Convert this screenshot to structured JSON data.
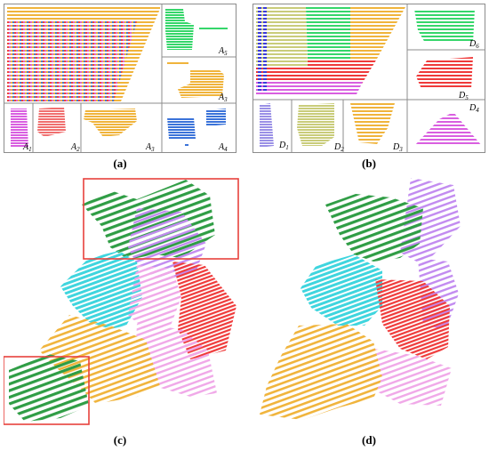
{
  "captions": {
    "a": "(a)",
    "b": "(b)",
    "c": "(c)",
    "d": "(d)"
  },
  "labels_a": {
    "A1": "A",
    "A1s": "1",
    "A2": "A",
    "A2s": "2",
    "A3": "A",
    "A3s": "3",
    "A4": "A",
    "A4s": "4",
    "A5": "A",
    "A5s": "5",
    "A6": "A",
    "A6s": "6"
  },
  "labels_b": {
    "D1": "D",
    "D1s": "1",
    "D2": "D",
    "D2s": "2",
    "D3": "D",
    "D3s": "3",
    "D4": "D",
    "D4s": "4",
    "D5": "D",
    "D5s": "5",
    "D6": "D",
    "D6s": "6"
  },
  "colors": {
    "frame": "#8c8c8c",
    "highlight_box": "#e8413c",
    "green": "#2f9d45",
    "lightgreen": "#35d66a",
    "orange": "#f0b43c",
    "red": "#ef3a3a",
    "salmon": "#f07070",
    "magenta": "#d95fe0",
    "blue": "#3b73d9",
    "cyan": "#3fd5de",
    "violet": "#c28bf0",
    "pink": "#f0a8e8",
    "olive": "#c9cc7a",
    "lavender": "#9a90e6"
  }
}
